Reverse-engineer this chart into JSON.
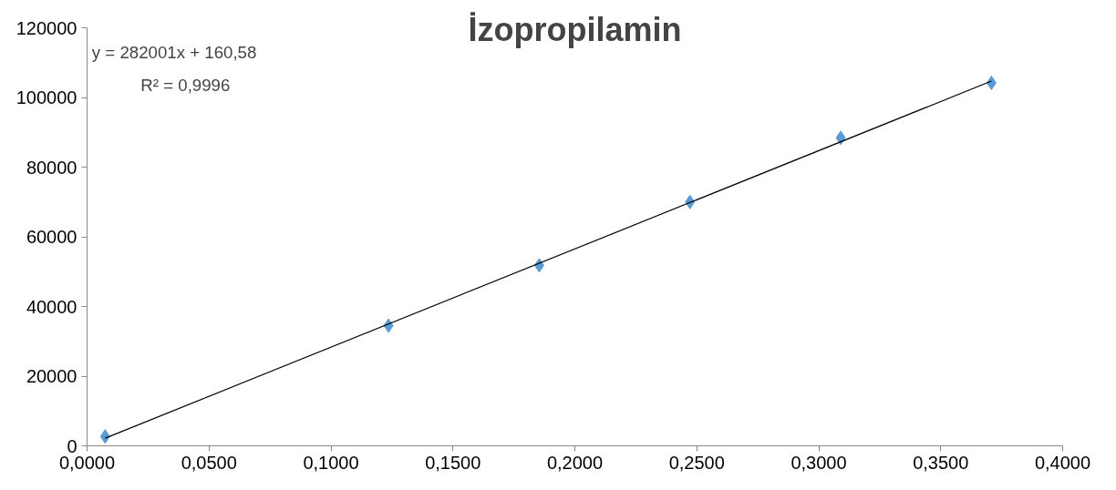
{
  "chart_data": {
    "type": "scatter",
    "title": "İzopropilamin",
    "annotations": [
      "y = 282001x + 160,58",
      "R² = 0,9996"
    ],
    "xlim": [
      0,
      0.4
    ],
    "ylim": [
      0,
      120000
    ],
    "xticks": [
      {
        "value": 0,
        "label": "0,0000"
      },
      {
        "value": 0.05,
        "label": "0,0500"
      },
      {
        "value": 0.1,
        "label": "0,1000"
      },
      {
        "value": 0.15,
        "label": "0,1500"
      },
      {
        "value": 0.2,
        "label": "0,2000"
      },
      {
        "value": 0.25,
        "label": "0,2500"
      },
      {
        "value": 0.3,
        "label": "0,3000"
      },
      {
        "value": 0.35,
        "label": "0,3500"
      },
      {
        "value": 0.4,
        "label": "0,4000"
      }
    ],
    "yticks": [
      0,
      20000,
      40000,
      60000,
      80000,
      100000,
      120000
    ],
    "grid": false,
    "series": [
      {
        "marker": "diamond",
        "color": "#5b9bd5",
        "x": [
          0.0074,
          0.1236,
          0.1854,
          0.2472,
          0.309,
          0.3708
        ],
        "values": [
          2700,
          34500,
          51800,
          70000,
          88400,
          104200
        ]
      },
      {
        "type": "line",
        "marker": "none",
        "color": "#000000",
        "x": [
          0.0074,
          0.3708
        ],
        "values": [
          2200,
          104700
        ]
      }
    ]
  }
}
